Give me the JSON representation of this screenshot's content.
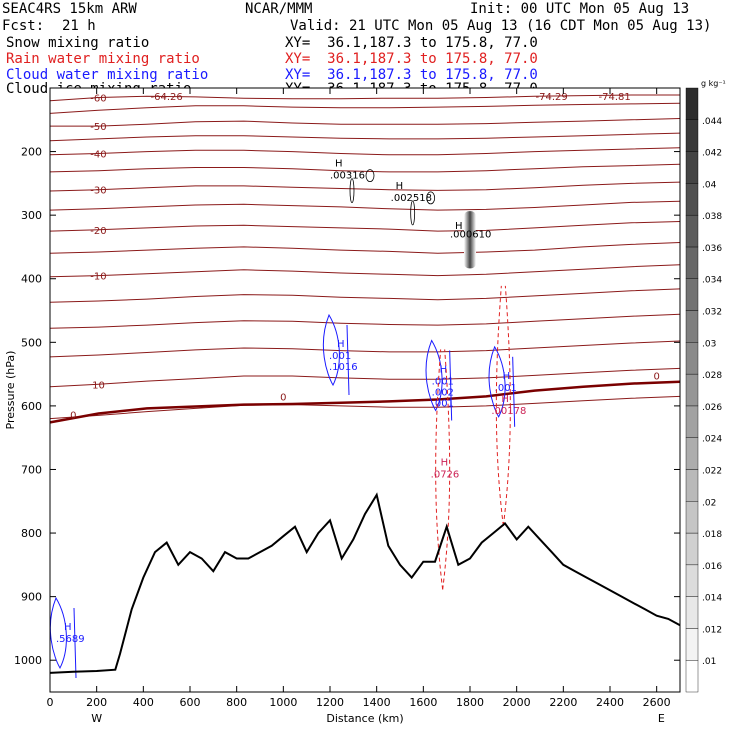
{
  "header": {
    "model": "SEAC4RS 15km ARW",
    "fcst_label": "Fcst:",
    "fcst_value": "21 h",
    "org": "NCAR/MMM",
    "init": "Init: 00 UTC Mon 05 Aug 13",
    "valid": "Valid: 21 UTC Mon 05 Aug 13 (16 CDT Mon 05 Aug 13)",
    "fields": [
      {
        "name": "Snow mixing ratio",
        "xy": "XY=  36.1,187.3 to 175.8, 77.0",
        "color": "#000000"
      },
      {
        "name": "Rain water mixing ratio",
        "xy": "XY=  36.1,187.3 to 175.8, 77.0",
        "color": "#e02020"
      },
      {
        "name": "Cloud water mixing ratio",
        "xy": "XY=  36.1,187.3 to 175.8, 77.0",
        "color": "#1a1aff"
      },
      {
        "name": "Cloud ice mixing ratio",
        "xy": "XY=  36.1,187.3 to 175.8, 77.0",
        "color": "#000000"
      }
    ]
  },
  "chart_data": {
    "type": "contour-cross-section",
    "xlabel": "Distance (km)",
    "ylabel": "Pressure (hPa)",
    "xlim": [
      0,
      2700
    ],
    "ylim": [
      1050,
      100
    ],
    "x_ticks": [
      0,
      200,
      400,
      600,
      800,
      1000,
      1200,
      1400,
      1600,
      1800,
      2000,
      2200,
      2400,
      2600
    ],
    "y_ticks": [
      200,
      300,
      400,
      500,
      600,
      700,
      800,
      900,
      1000
    ],
    "x_end_labels": {
      "left": "W",
      "right": "E"
    },
    "colorbar": {
      "unit": "g kg⁻¹",
      "ticks": [
        0.01,
        0.012,
        0.014,
        0.016,
        0.018,
        0.02,
        0.022,
        0.024,
        0.026,
        0.028,
        0.03,
        0.032,
        0.034,
        0.036,
        0.038,
        0.04,
        0.042,
        0.044
      ],
      "tick_labels": [
        ".01",
        ".012",
        ".014",
        ".016",
        ".018",
        ".02",
        ".022",
        ".024",
        ".026",
        ".028",
        ".03",
        ".032",
        ".034",
        ".036",
        ".038",
        ".04",
        ".042",
        ".044"
      ]
    },
    "temperature_contours_C": [
      {
        "value": -60,
        "p": [
          120,
          115,
          113,
          114,
          116,
          117,
          117,
          116,
          116,
          115,
          113,
          112,
          111,
          111
        ]
      },
      {
        "value": -55,
        "p": [
          140,
          135,
          131,
          128,
          128,
          130,
          131,
          131,
          130,
          129,
          127,
          126,
          125,
          124
        ]
      },
      {
        "value": -50,
        "p": [
          160,
          160,
          157,
          153,
          152,
          155,
          157,
          157,
          157,
          156,
          154,
          152,
          150,
          148
        ]
      },
      {
        "value": -45,
        "p": [
          183,
          180,
          177,
          175,
          175,
          177,
          179,
          180,
          180,
          179,
          177,
          175,
          173,
          171
        ]
      },
      {
        "value": -40,
        "p": [
          205,
          203,
          200,
          198,
          198,
          200,
          203,
          205,
          205,
          203,
          200,
          198,
          196,
          194
        ]
      },
      {
        "value": -35,
        "p": [
          232,
          230,
          227,
          225,
          225,
          227,
          230,
          232,
          232,
          230,
          227,
          224,
          222,
          220
        ]
      },
      {
        "value": -30,
        "p": [
          262,
          260,
          257,
          254,
          254,
          256,
          258,
          260,
          261,
          260,
          257,
          253,
          250,
          248
        ]
      },
      {
        "value": -25,
        "p": [
          292,
          290,
          287,
          284,
          283,
          285,
          287,
          290,
          292,
          291,
          288,
          284,
          280,
          278
        ]
      },
      {
        "value": -20,
        "p": [
          325,
          323,
          320,
          317,
          316,
          318,
          320,
          322,
          325,
          324,
          320,
          316,
          312,
          310
        ]
      },
      {
        "value": -15,
        "p": [
          360,
          358,
          355,
          352,
          350,
          352,
          355,
          357,
          360,
          358,
          355,
          350,
          346,
          343
        ]
      },
      {
        "value": -10,
        "p": [
          397,
          395,
          392,
          389,
          386,
          388,
          391,
          393,
          395,
          393,
          389,
          385,
          381,
          378
        ]
      },
      {
        "value": -5,
        "p": [
          437,
          435,
          432,
          428,
          425,
          426,
          429,
          431,
          433,
          431,
          427,
          423,
          419,
          416
        ]
      },
      {
        "value": 0,
        "p": [
          478,
          476,
          473,
          469,
          466,
          467,
          470,
          472,
          473,
          471,
          467,
          463,
          459,
          456
        ]
      },
      {
        "value": 5,
        "p": [
          523,
          520,
          516,
          512,
          509,
          510,
          513,
          515,
          515,
          513,
          509,
          505,
          501,
          498
        ]
      },
      {
        "value": 10,
        "p": [
          570,
          566,
          561,
          557,
          553,
          553,
          556,
          558,
          558,
          556,
          552,
          548,
          544,
          541
        ]
      },
      {
        "value": 15,
        "p": [
          620,
          615,
          609,
          604,
          599,
          598,
          600,
          602,
          602,
          600,
          596,
          592,
          588,
          585
        ]
      }
    ],
    "freezing_level": {
      "value": 0,
      "p": [
        626,
        612,
        604,
        601,
        598,
        597,
        595,
        593,
        590,
        585,
        576,
        570,
        565,
        562
      ]
    },
    "terrain_surface_hPa": {
      "x": [
        0,
        100,
        200,
        280,
        300,
        350,
        400,
        450,
        500,
        550,
        600,
        650,
        700,
        750,
        800,
        850,
        900,
        950,
        1000,
        1050,
        1100,
        1150,
        1200,
        1250,
        1300,
        1350,
        1400,
        1450,
        1500,
        1550,
        1600,
        1650,
        1700,
        1750,
        1800,
        1850,
        1900,
        1950,
        2000,
        2050,
        2100,
        2150,
        2200,
        2250,
        2300,
        2350,
        2400,
        2450,
        2500,
        2550,
        2600,
        2650,
        2700
      ],
      "p": [
        1020,
        1018,
        1017,
        1015,
        990,
        920,
        870,
        830,
        815,
        850,
        830,
        840,
        860,
        830,
        840,
        840,
        830,
        820,
        805,
        790,
        830,
        800,
        780,
        840,
        810,
        770,
        740,
        820,
        850,
        870,
        845,
        845,
        790,
        850,
        840,
        815,
        800,
        785,
        810,
        790,
        810,
        830,
        850,
        860,
        870,
        880,
        890,
        900,
        910,
        920,
        930,
        935,
        945
      ]
    },
    "snow_contours": [
      {
        "center": [
          1200,
          230
        ],
        "label": ".00316",
        "marker": "H"
      },
      {
        "center": [
          1460,
          265
        ],
        "label": ".002518",
        "marker": "H"
      }
    ],
    "cloud_ice_max": {
      "center": [
        1800,
        340
      ],
      "label": ".000610",
      "marker": "H"
    },
    "cloud_water_contours": [
      {
        "center": [
          1230,
          520
        ],
        "labels": [
          ".001",
          ".1016"
        ],
        "marker": "H"
      },
      {
        "center": [
          1670,
          560
        ],
        "labels": [
          ".001",
          ".002",
          ".001"
        ],
        "marker": "H"
      },
      {
        "center": [
          1940,
          570
        ],
        "labels": [
          ".001"
        ],
        "marker": "H"
      },
      {
        "center": [
          60,
          965
        ],
        "labels": [
          ".5689"
        ],
        "marker": "H"
      }
    ],
    "rain_contours": [
      {
        "center": [
          1700,
          700
        ],
        "labels": [
          ".0726"
        ],
        "marker": "H"
      },
      {
        "center": [
          1960,
          600
        ],
        "labels": [
          ".00178"
        ],
        "marker": "H"
      }
    ],
    "label_minus64": "-64.26",
    "label_minus74": "-74.29",
    "label_minus74b": "-74.81"
  }
}
